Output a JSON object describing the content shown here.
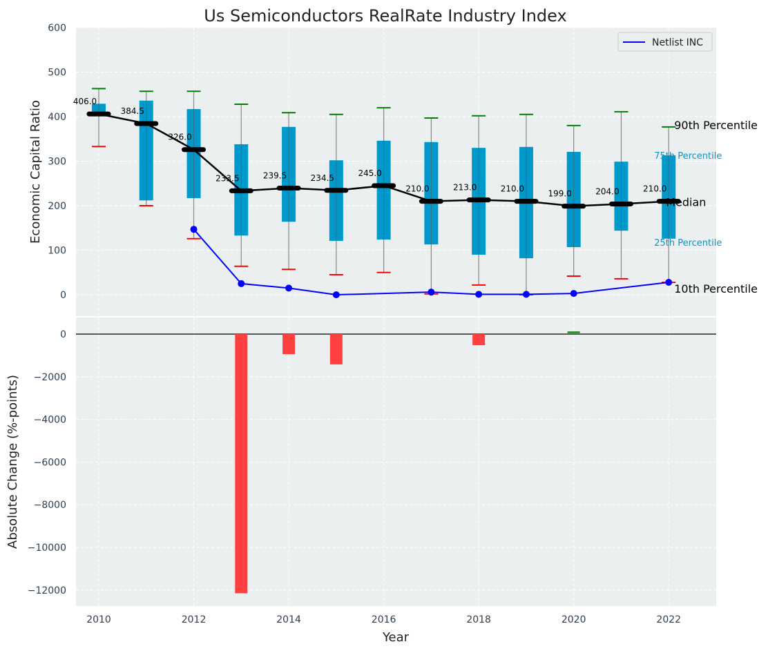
{
  "chart_data": [
    {
      "type": "box-range-line",
      "title": "Us Semiconductors RealRate Industry Index",
      "xlabel": "",
      "ylabel": "Economic Capital Ratio",
      "ylim": [
        -48,
        600
      ],
      "xlim": [
        2009.52,
        2023
      ],
      "yticks": [
        0,
        100,
        200,
        300,
        400,
        500,
        600
      ],
      "grid": true,
      "years": [
        2010,
        2011,
        2012,
        2013,
        2014,
        2015,
        2016,
        2017,
        2018,
        2019,
        2020,
        2021,
        2022
      ],
      "p90": [
        463,
        457,
        457,
        428,
        409,
        405,
        420,
        397,
        402,
        405,
        380,
        411,
        377
      ],
      "p75": [
        429,
        436,
        417,
        338,
        377,
        302,
        346,
        343,
        330,
        332,
        321,
        299,
        313
      ],
      "median": [
        406.0,
        384.5,
        326.0,
        233.5,
        239.5,
        234.5,
        245.0,
        210.0,
        213.0,
        210.0,
        199.0,
        204.0,
        210.0
      ],
      "median_labels": [
        "406.0",
        "384.5",
        "326.0",
        "233.5",
        "239.5",
        "234.5",
        "245.0",
        "210.0",
        "213.0",
        "210.0",
        "199.0",
        "204.0",
        "210.0"
      ],
      "p25": [
        403,
        212,
        217,
        133,
        164,
        121,
        124,
        113,
        90,
        82,
        107,
        144,
        126
      ],
      "p10": [
        333,
        200,
        126,
        64,
        57,
        45,
        50,
        2,
        22,
        0,
        42,
        36,
        28
      ],
      "series": [
        {
          "name": "Netlist INC",
          "color": "#0000ff",
          "x": [
            2012,
            2013,
            2014,
            2015,
            2017,
            2018,
            2019,
            2020,
            2022
          ],
          "values": [
            147,
            25,
            15,
            0,
            6,
            1,
            1,
            3,
            28
          ]
        }
      ],
      "legend": {
        "position": "top-right",
        "entries": [
          "Netlist INC"
        ]
      },
      "annotations": {
        "p90": "90th Percentile",
        "p75": "75th Percentile",
        "median": "Median",
        "p25": "25th Percentile",
        "p10": "10th Percentile"
      },
      "colors": {
        "box": "#0099cc",
        "p90": "#008000",
        "p10": "#ff0000",
        "median": "#000000",
        "bg": "#eceff0"
      }
    },
    {
      "type": "bar",
      "xlabel": "Year",
      "ylabel": "Absolute Change (%-points)",
      "ylim": [
        -12750,
        777
      ],
      "yticks": [
        0,
        -2000,
        -4000,
        -6000,
        -8000,
        -10000,
        -12000
      ],
      "ytick_labels": [
        "0",
        "−2000",
        "−4000",
        "−6000",
        "−8000",
        "−10000",
        "−12000"
      ],
      "xticks": [
        2010,
        2012,
        2014,
        2016,
        2018,
        2020,
        2022
      ],
      "x": [
        2013,
        2014,
        2015,
        2018,
        2020
      ],
      "values": [
        -12150,
        -940,
        -1420,
        -520,
        130
      ],
      "colors": {
        "negative": "#ff4040",
        "positive": "#3a8f3a"
      }
    }
  ]
}
